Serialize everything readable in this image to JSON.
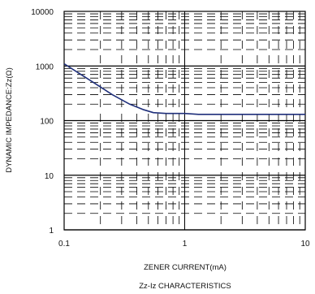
{
  "chart_data": {
    "type": "line",
    "title": "Zz-Iz CHARACTERISTICS",
    "xlabel": "ZENER CURRENT(mA)",
    "ylabel": "DYNAMIC IMPEDANCE:Zz(Ω)",
    "x_scale": "log",
    "y_scale": "log",
    "xlim": [
      0.1,
      10
    ],
    "ylim": [
      1,
      10000
    ],
    "x_ticks": [
      "0.1",
      "1",
      "10"
    ],
    "y_ticks": [
      "1",
      "10",
      "100",
      "1000",
      "10000"
    ],
    "grid": true,
    "series": [
      {
        "color": "#1f2f7a",
        "x": [
          0.1,
          0.13,
          0.18,
          0.25,
          0.35,
          0.45,
          0.55,
          0.7,
          1.0,
          1.3,
          2.0,
          5.0,
          10.0
        ],
        "y": [
          1100,
          760,
          480,
          300,
          200,
          160,
          140,
          135,
          135,
          130,
          130,
          130,
          130
        ]
      }
    ]
  }
}
